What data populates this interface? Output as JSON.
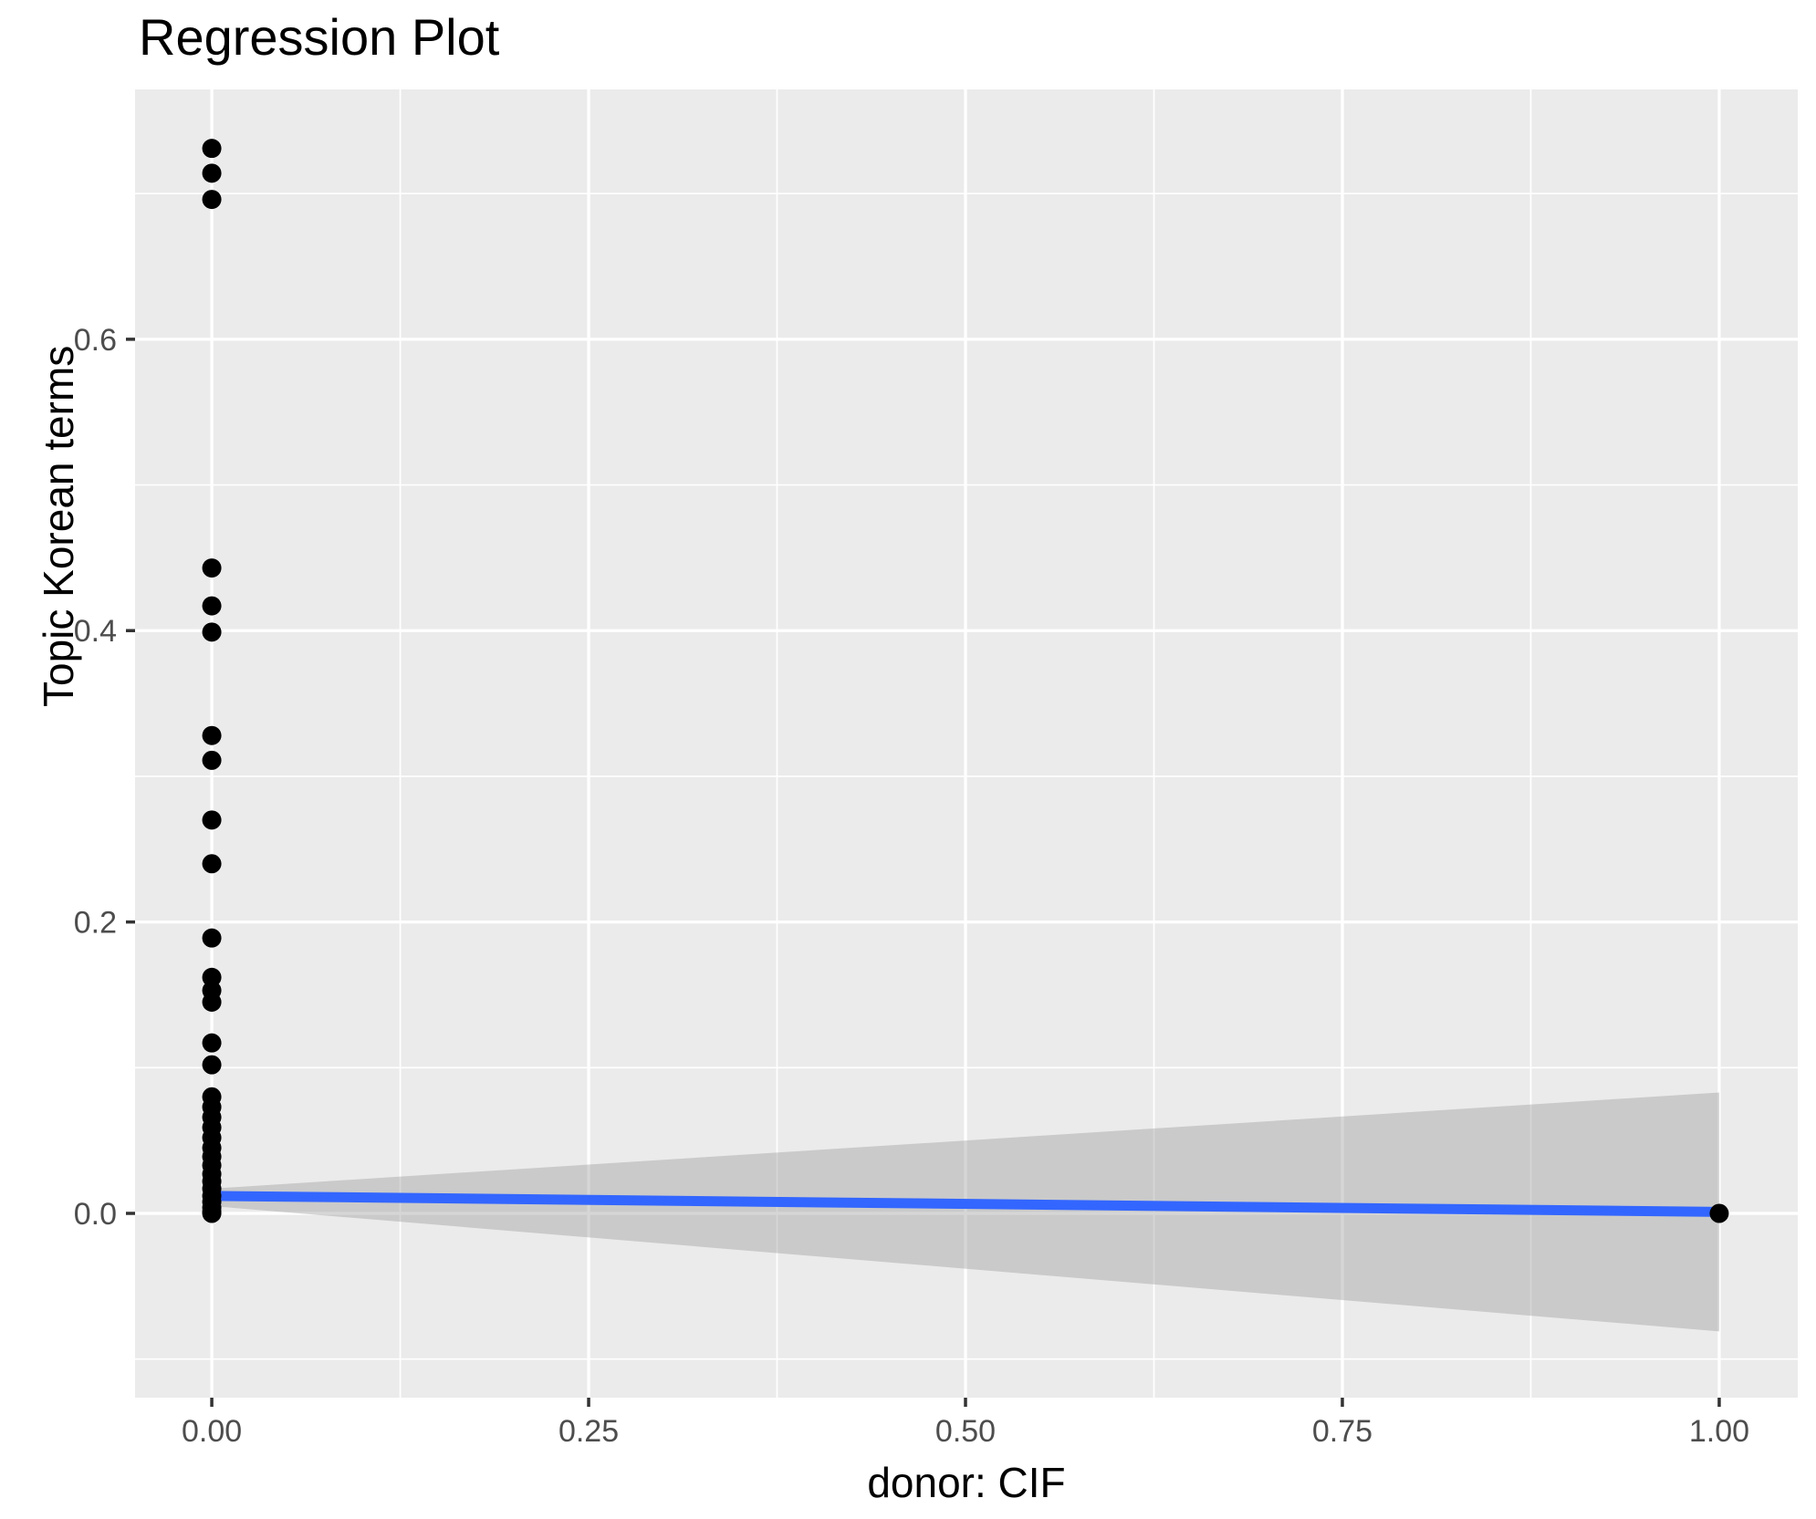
{
  "title": "Regression Plot",
  "chart_data": {
    "type": "scatter",
    "title": "Regression Plot",
    "xlabel": "donor: CIF",
    "ylabel": "Topic Korean terms",
    "legend": "none",
    "grid": "on",
    "panel_bg": "#EBEBEB",
    "grid_color": "#FFFFFF",
    "tick_mark_color": "#333333",
    "tick_label_color": "#4D4D4D",
    "point_color": "#000000",
    "line_color": "#3366FF",
    "band_color": "rgba(153,153,153,0.4)",
    "xlim": [
      -0.0509,
      1.0521
    ],
    "ylim": [
      -0.1265,
      0.7715
    ],
    "x_ticks": [
      0,
      0.25,
      0.5,
      0.75,
      1
    ],
    "x_tick_labels": [
      "0.00",
      "0.25",
      "0.50",
      "0.75",
      "1.00"
    ],
    "x_minor_ticks": [
      0.125,
      0.375,
      0.625,
      0.875
    ],
    "y_ticks": [
      0,
      0.2,
      0.4,
      0.6
    ],
    "y_tick_labels": [
      "0.0",
      "0.2",
      "0.4",
      "0.6"
    ],
    "y_minor_ticks": [
      -0.1,
      0.1,
      0.3,
      0.5,
      0.7
    ],
    "series": [
      {
        "name": "confidence-band",
        "kind": "band",
        "x": [
          0,
          1
        ],
        "upper": [
          0.017,
          0.083
        ],
        "lower": [
          0.005,
          -0.081
        ]
      },
      {
        "name": "regression-line",
        "kind": "line",
        "x": [
          0,
          1
        ],
        "y": [
          0.012,
          0.001
        ]
      },
      {
        "name": "observations",
        "kind": "points",
        "points": [
          [
            0,
            0.731
          ],
          [
            0,
            0.714
          ],
          [
            0,
            0.696
          ],
          [
            0,
            0.443
          ],
          [
            0,
            0.417
          ],
          [
            0,
            0.399
          ],
          [
            0,
            0.328
          ],
          [
            0,
            0.311
          ],
          [
            0,
            0.27
          ],
          [
            0,
            0.24
          ],
          [
            0,
            0.189
          ],
          [
            0,
            0.162
          ],
          [
            0,
            0.153
          ],
          [
            0,
            0.145
          ],
          [
            0,
            0.117
          ],
          [
            0,
            0.102
          ],
          [
            0,
            0.08
          ],
          [
            0,
            0.073
          ],
          [
            0,
            0.066
          ],
          [
            0,
            0.059
          ],
          [
            0,
            0.052
          ],
          [
            0,
            0.045
          ],
          [
            0,
            0.039
          ],
          [
            0,
            0.033
          ],
          [
            0,
            0.027
          ],
          [
            0,
            0.022
          ],
          [
            0,
            0.017
          ],
          [
            0,
            0.012
          ],
          [
            0,
            0.008
          ],
          [
            0,
            0.004
          ],
          [
            0,
            0.001
          ],
          [
            0,
            0.0
          ],
          [
            1,
            0.0
          ]
        ]
      }
    ]
  }
}
